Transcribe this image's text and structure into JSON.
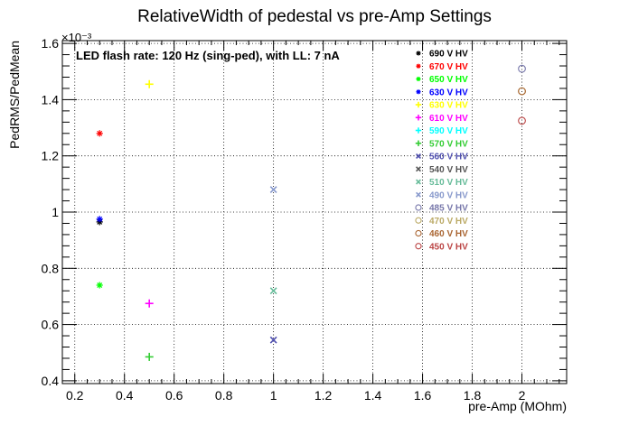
{
  "chart_data": {
    "type": "scatter",
    "title": "RelativeWidth of pedestal vs pre-Amp Settings",
    "xlabel": "pre-Amp (MOhm)",
    "ylabel": "PedRMS/PedMean",
    "exponent_label": "×10⁻³",
    "annotation": "LED flash rate: 120 Hz  (sing-ped), with LL: 7 nA",
    "xlim": [
      0.15,
      2.18
    ],
    "ylim": [
      0.39,
      1.61
    ],
    "xticks": [
      {
        "v": 0.2,
        "label": "0.2"
      },
      {
        "v": 0.4,
        "label": "0.4"
      },
      {
        "v": 0.6,
        "label": "0.6"
      },
      {
        "v": 0.8,
        "label": "0.8"
      },
      {
        "v": 1.0,
        "label": "1"
      },
      {
        "v": 1.2,
        "label": "1.2"
      },
      {
        "v": 1.4,
        "label": "1.4"
      },
      {
        "v": 1.6,
        "label": "1.6"
      },
      {
        "v": 1.8,
        "label": "1.8"
      },
      {
        "v": 2.0,
        "label": "2"
      }
    ],
    "yticks": [
      {
        "v": 0.4,
        "label": "0.4"
      },
      {
        "v": 0.6,
        "label": "0.6"
      },
      {
        "v": 0.8,
        "label": "0.8"
      },
      {
        "v": 1.0,
        "label": "1"
      },
      {
        "v": 1.2,
        "label": "1.2"
      },
      {
        "v": 1.4,
        "label": "1.4"
      },
      {
        "v": 1.6,
        "label": "1.6"
      }
    ],
    "grid": true,
    "legend_position": "top-right",
    "series": [
      {
        "name": "690 V HV",
        "color": "#000000",
        "marker": "star",
        "points": [
          [
            0.3,
            0.965
          ]
        ]
      },
      {
        "name": "670 V HV",
        "color": "#ff0000",
        "marker": "star",
        "points": [
          [
            0.3,
            1.28
          ]
        ]
      },
      {
        "name": "650 V HV",
        "color": "#00ff00",
        "marker": "star",
        "points": [
          [
            0.3,
            0.74
          ]
        ]
      },
      {
        "name": "630 V HV",
        "color": "#0000ff",
        "marker": "star",
        "points": [
          [
            0.3,
            0.975
          ]
        ]
      },
      {
        "name": "630 V HV",
        "color": "#ffff00",
        "marker": "plus",
        "points": [
          [
            0.5,
            1.455
          ]
        ]
      },
      {
        "name": "610 V HV",
        "color": "#ff00ff",
        "marker": "plus",
        "points": [
          [
            0.5,
            0.675
          ]
        ]
      },
      {
        "name": "590 V HV",
        "color": "#00ffff",
        "marker": "plus",
        "points": []
      },
      {
        "name": "570 V HV",
        "color": "#33cc33",
        "marker": "plus",
        "points": [
          [
            0.5,
            0.485
          ]
        ]
      },
      {
        "name": "560 V HV",
        "color": "#5050b0",
        "marker": "x",
        "points": [
          [
            1.0,
            0.545
          ]
        ]
      },
      {
        "name": "540 V HV",
        "color": "#555555",
        "marker": "x",
        "points": []
      },
      {
        "name": "510 V HV",
        "color": "#66bb99",
        "marker": "x",
        "points": [
          [
            1.0,
            0.72
          ]
        ]
      },
      {
        "name": "490 V HV",
        "color": "#8899cc",
        "marker": "x",
        "points": [
          [
            1.0,
            1.08
          ]
        ]
      },
      {
        "name": "485 V HV",
        "color": "#7777aa",
        "marker": "circle",
        "points": [
          [
            2.0,
            1.51
          ]
        ]
      },
      {
        "name": "470 V HV",
        "color": "#bbaa66",
        "marker": "circle",
        "points": [
          [
            2.0,
            1.43
          ]
        ]
      },
      {
        "name": "460 V HV",
        "color": "#aa6633",
        "marker": "circle",
        "points": [
          [
            2.0,
            1.43
          ]
        ]
      },
      {
        "name": "450 V HV",
        "color": "#bb4444",
        "marker": "circle",
        "points": [
          [
            2.0,
            1.325
          ]
        ]
      }
    ]
  }
}
